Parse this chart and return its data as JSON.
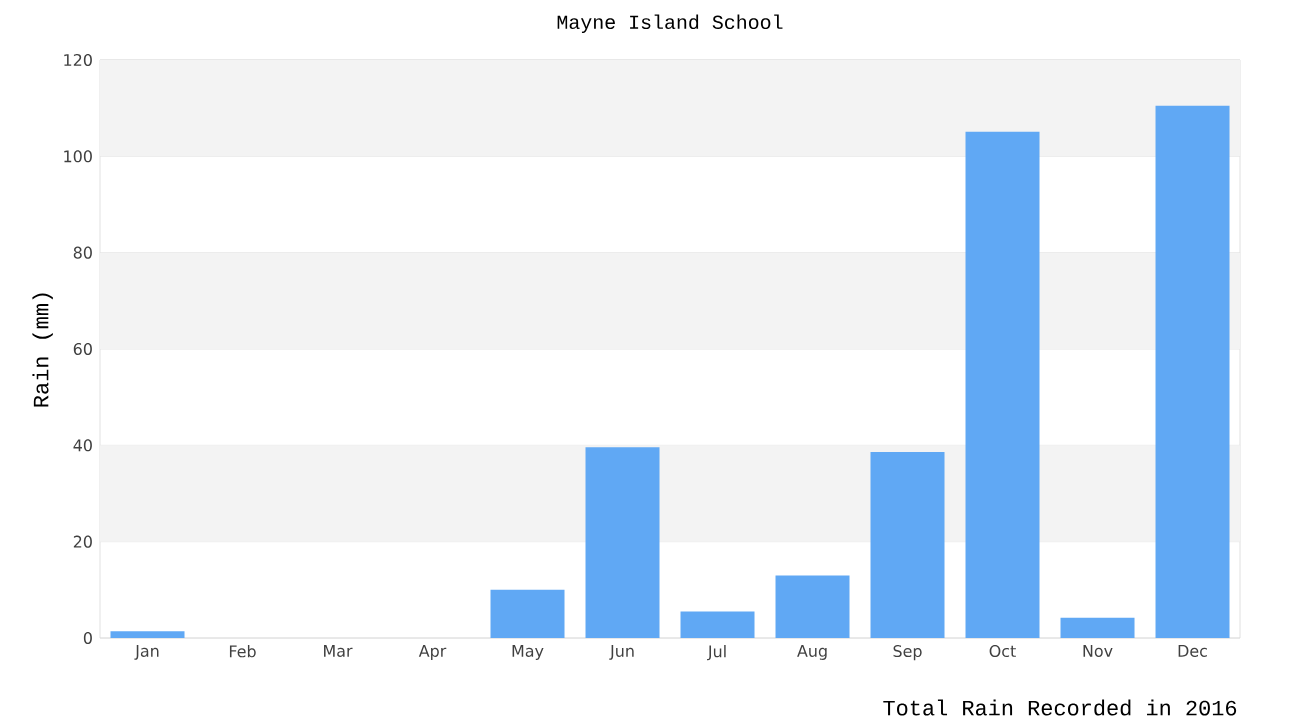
{
  "chart_data": {
    "type": "bar",
    "title": "Mayne Island School",
    "ylabel": "Rain (mm)",
    "categories": [
      "Jan",
      "Feb",
      "Mar",
      "Apr",
      "May",
      "Jun",
      "Jul",
      "Aug",
      "Sep",
      "Oct",
      "Nov",
      "Dec"
    ],
    "values": [
      1.4,
      0,
      0,
      0,
      10.0,
      39.6,
      5.5,
      13.0,
      38.6,
      105.1,
      4.2,
      110.5
    ],
    "color": "#60a8f4",
    "ylim": [
      0,
      120
    ],
    "yticks": [
      0,
      20,
      40,
      60,
      80,
      100,
      120
    ],
    "grid": "y",
    "bands": [
      {
        "axis": "y",
        "from": 20,
        "to": 40,
        "color": "#f3f3f3"
      },
      {
        "axis": "y",
        "from": 60,
        "to": 80,
        "color": "#f3f3f3"
      },
      {
        "axis": "y",
        "from": 100,
        "to": 120,
        "color": "#f3f3f3"
      }
    ],
    "annotations": [
      "Total Rain Recorded in 2016"
    ]
  }
}
